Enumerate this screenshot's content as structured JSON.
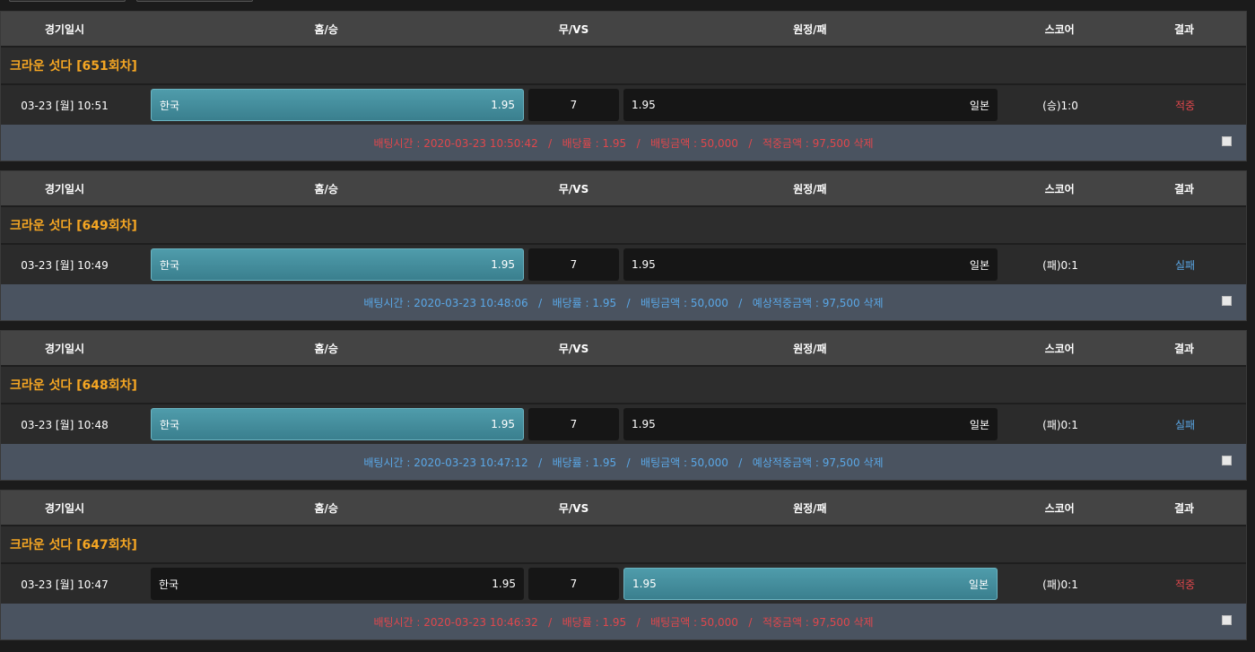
{
  "colors": {
    "accent_title": "#f5a623",
    "win": "#e0474c",
    "lose": "#5aa7e6",
    "selected": "#4591a1"
  },
  "header": {
    "date": "경기일시",
    "home": "홈/승",
    "draw": "무/VS",
    "away": "원정/패",
    "score": "스코어",
    "result": "결과"
  },
  "bets": [
    {
      "title": "크라운 섯다  [651회차]",
      "date": "03-23 [월] 10:51",
      "home_team": "한국",
      "home_odds": "1.95",
      "draw": "7",
      "away_odds": "1.95",
      "away_team": "일본",
      "selected": "home",
      "score": "(승)1:0",
      "result": "적중",
      "result_type": "win",
      "info": "배팅시간 : 2020-03-23 10:50:42   /   배당률 : 1.95   /   배팅금액 : 50,000   /   적중금액 : 97,500 삭제"
    },
    {
      "title": "크라운 섯다  [649회차]",
      "date": "03-23 [월] 10:49",
      "home_team": "한국",
      "home_odds": "1.95",
      "draw": "7",
      "away_odds": "1.95",
      "away_team": "일본",
      "selected": "home",
      "score": "(패)0:1",
      "result": "실패",
      "result_type": "lose",
      "info": "배팅시간 : 2020-03-23 10:48:06   /   배당률 : 1.95   /   배팅금액 : 50,000   /   예상적중금액 : 97,500 삭제"
    },
    {
      "title": "크라운 섯다  [648회차]",
      "date": "03-23 [월] 10:48",
      "home_team": "한국",
      "home_odds": "1.95",
      "draw": "7",
      "away_odds": "1.95",
      "away_team": "일본",
      "selected": "home",
      "score": "(패)0:1",
      "result": "실패",
      "result_type": "lose",
      "info": "배팅시간 : 2020-03-23 10:47:12   /   배당률 : 1.95   /   배팅금액 : 50,000   /   예상적중금액 : 97,500 삭제"
    },
    {
      "title": "크라운 섯다  [647회차]",
      "date": "03-23 [월] 10:47",
      "home_team": "한국",
      "home_odds": "1.95",
      "draw": "7",
      "away_odds": "1.95",
      "away_team": "일본",
      "selected": "away",
      "score": "(패)0:1",
      "result": "적중",
      "result_type": "win",
      "info": "배팅시간 : 2020-03-23 10:46:32   /   배당률 : 1.95   /   배팅금액 : 50,000   /   적중금액 : 97,500 삭제"
    }
  ]
}
